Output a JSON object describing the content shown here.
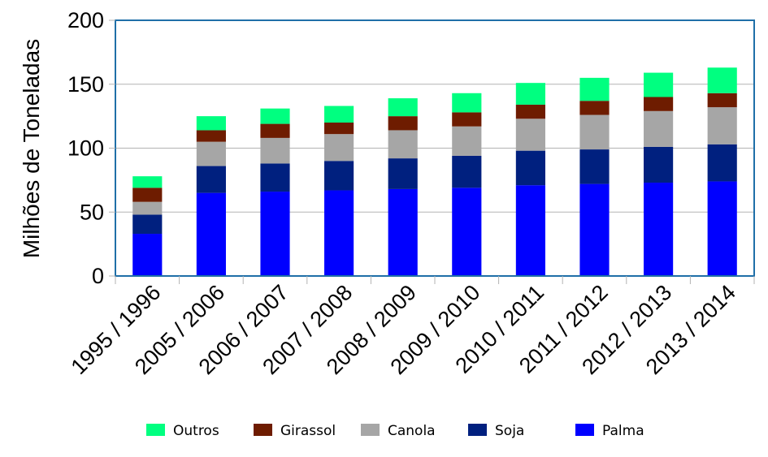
{
  "chart_data": {
    "type": "bar",
    "stacked": true,
    "ylabel": "Milhões de Toneladas",
    "ylim": [
      0,
      200
    ],
    "yticks": [
      0,
      50,
      100,
      150,
      200
    ],
    "grid": true,
    "legend_position": "bottom",
    "categories": [
      "1995 / 1996",
      "2005 / 2006",
      "2006 / 2007",
      "2007 / 2008",
      "2008 / 2009",
      "2009 / 2010",
      "2010 / 2011",
      "2011 / 2012",
      "2012 / 2013",
      "2013 / 2014"
    ],
    "series": [
      {
        "name": "Palma",
        "color": "#0000ff",
        "values": [
          33,
          65,
          66,
          67,
          68,
          69,
          71,
          72,
          73,
          74
        ]
      },
      {
        "name": "Soja",
        "color": "#00207f",
        "values": [
          15,
          21,
          22,
          23,
          24,
          25,
          27,
          27,
          28,
          29
        ]
      },
      {
        "name": "Canola",
        "color": "#a6a6a6",
        "values": [
          10,
          19,
          20,
          21,
          22,
          23,
          25,
          27,
          28,
          29
        ]
      },
      {
        "name": "Girassol",
        "color": "#6e1c00",
        "values": [
          11,
          9,
          11,
          9,
          11,
          11,
          11,
          11,
          11,
          11
        ]
      },
      {
        "name": "Outros",
        "color": "#00ff80",
        "values": [
          9,
          11,
          12,
          13,
          14,
          15,
          17,
          18,
          19,
          20
        ]
      }
    ],
    "legend_order": [
      "Outros",
      "Girassol",
      "Canola",
      "Soja",
      "Palma"
    ]
  }
}
